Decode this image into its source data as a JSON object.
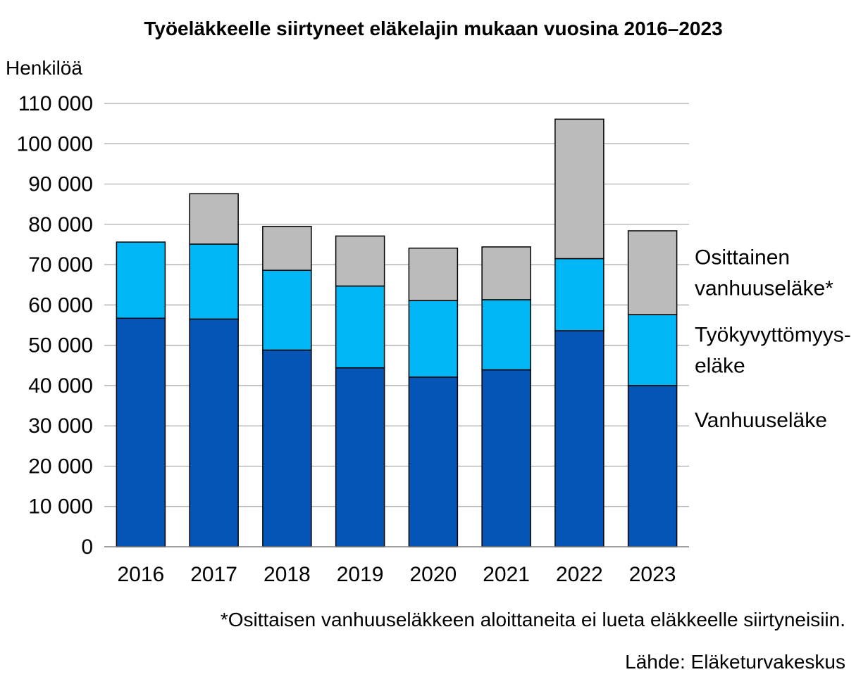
{
  "chart_data": {
    "type": "bar",
    "stacked": true,
    "title": "Työeläkkeelle siirtyneet eläkelajin mukaan vuosina 2016–2023",
    "ylabel": "Henkilöä",
    "xlabel": "",
    "ylim": [
      0,
      110000
    ],
    "yticks": [
      0,
      10000,
      20000,
      30000,
      40000,
      50000,
      60000,
      70000,
      80000,
      90000,
      100000,
      110000
    ],
    "ytick_labels": [
      "0",
      "10 000",
      "20 000",
      "30 000",
      "40 000",
      "50 000",
      "60 000",
      "70 000",
      "80 000",
      "90 000",
      "100 000",
      "110 000"
    ],
    "grid": true,
    "legend_placement": "right",
    "categories": [
      "2016",
      "2017",
      "2018",
      "2019",
      "2020",
      "2021",
      "2022",
      "2023"
    ],
    "series": [
      {
        "name": "Vanhuuseläke",
        "label_lines": [
          "Vanhuuseläke"
        ],
        "color": "#0455B5",
        "values": [
          56700,
          56500,
          48800,
          44400,
          42100,
          43900,
          53600,
          40000
        ]
      },
      {
        "name": "Työkyvyttömyys-eläke",
        "label_lines": [
          "Työkyvyttömyys-",
          "eläke"
        ],
        "color": "#00B6F4",
        "values": [
          18900,
          18600,
          19800,
          20300,
          19000,
          17400,
          17900,
          17600
        ]
      },
      {
        "name": "Osittainen vanhuuseläke*",
        "label_lines": [
          "Osittainen",
          "vanhuuseläke*"
        ],
        "color": "#BBBBBB",
        "values": [
          0,
          12500,
          10900,
          12400,
          13000,
          13100,
          34600,
          20800
        ]
      }
    ]
  },
  "footnote": "*Osittaisen vanhuuseläkkeen aloittaneita ei lueta eläkkeelle siirtyneisiin.",
  "source": "Lähde: Eläketurvakeskus"
}
